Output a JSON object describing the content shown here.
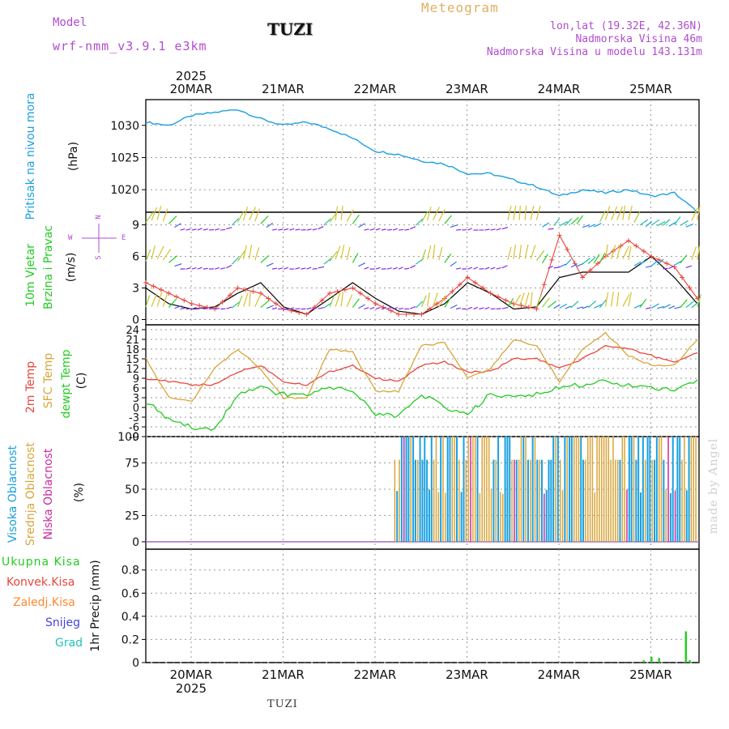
{
  "colors": {
    "pressure": "#1aa0e0",
    "temp2m": "#e8463c",
    "sfc_temp": "#d9a53a",
    "dewpt": "#22cc22",
    "model_color": "#b04ccf",
    "title_color": "#e0b060",
    "high_cloud": "#1aa0e0",
    "mid_cloud": "#d9a53a",
    "low_cloud": "#cc2aa0",
    "precip_total": "#22cc22",
    "precip_conv": "#e8463c",
    "precip_frz": "#ff8830",
    "precip_snow": "#4444dd",
    "precip_grad": "#22c0c0"
  },
  "header": {
    "model_label": "Model",
    "model_name": "wrf-nmm_v3.9.1  e3km",
    "station": "TUZI",
    "title": "Meteogram",
    "lonlat": "lon,lat (19.32E, 42.36N)",
    "elevation": "Nadmorska Visina 46m",
    "model_elevation": "Nadmorska Visina u modelu 143.131m"
  },
  "footer": {
    "station": "TUZI",
    "credit": "made by Angel"
  },
  "days": [
    "20MAR",
    "21MAR",
    "22MAR",
    "23MAR",
    "24MAR",
    "25MAR"
  ],
  "year": "2025",
  "panels": {
    "pressure": {
      "ylabel_line1": "Pritisak na nivou mora",
      "unit": "(hPa)"
    },
    "wind": {
      "ylabel_line1": "10m Vjetar",
      "ylabel_line2": "Brzina i Pravac",
      "unit": "(m/s)",
      "compass": {
        "n": "N",
        "w": "W",
        "e": "E",
        "s": "S"
      }
    },
    "temp": {
      "ylabel_line1": "2m Temp",
      "ylabel_line2": "SFC Temp",
      "ylabel_line3": "dewpt Temp",
      "unit": "(C)"
    },
    "cloud": {
      "ylabel_line1": "Visoka Oblacnost",
      "ylabel_line2": "Srednja Oblacnost",
      "ylabel_line3": "Niska Oblacnost",
      "unit": "(%)"
    },
    "precip": {
      "legend": [
        "Ukupna Kisa",
        "Konvek.Kisa",
        "Zaledj.Kisa",
        "Snijeg",
        "Grad"
      ],
      "ylabel": "1hr Precip (mm)"
    }
  },
  "chart_data": [
    {
      "type": "line",
      "title": "Pritisak na nivou mora",
      "ylabel": "(hPa)",
      "x_hours": [
        0,
        6,
        12,
        18,
        24,
        30,
        36,
        42,
        48,
        54,
        60,
        66,
        72,
        78,
        84,
        90,
        96,
        102,
        108,
        114,
        120,
        126,
        132,
        138,
        144
      ],
      "series": [
        {
          "name": "pressure",
          "values": [
            1030.5,
            1030,
            1031.5,
            1032,
            1032.5,
            1031,
            1030,
            1030.5,
            1029.5,
            1028,
            1026,
            1025.5,
            1024.5,
            1024,
            1022.5,
            1022.5,
            1021.5,
            1020.5,
            1019,
            1020,
            1019.5,
            1020,
            1019,
            1019.5,
            1016.5
          ]
        }
      ],
      "yticks": [
        1020,
        1025,
        1030
      ],
      "ylim": [
        1016.5,
        1034
      ]
    },
    {
      "type": "line",
      "title": "10m Vjetar Brzina i Pravac",
      "ylabel": "(m/s)",
      "x_hours": [
        0,
        6,
        12,
        18,
        24,
        30,
        36,
        42,
        48,
        54,
        60,
        66,
        72,
        78,
        84,
        90,
        96,
        102,
        108,
        114,
        120,
        126,
        132,
        138,
        144
      ],
      "series": [
        {
          "name": "wind speed",
          "values": [
            3,
            1.5,
            1,
            1.2,
            2.5,
            3.5,
            1.2,
            0.5,
            2,
            3.5,
            2,
            0.8,
            0.5,
            1.5,
            3.5,
            2.5,
            1,
            1.2,
            4,
            4.5,
            4.5,
            4.5,
            6,
            4,
            1.5
          ]
        },
        {
          "name": "gust",
          "values": [
            3.5,
            2.5,
            1.5,
            1,
            3,
            2.5,
            1,
            0.5,
            2.5,
            3,
            1.5,
            0.5,
            0.5,
            2,
            4,
            2.5,
            1.5,
            1,
            8,
            4,
            6,
            7.5,
            6,
            5,
            2
          ]
        }
      ],
      "yticks": [
        0,
        3,
        6,
        9
      ],
      "ylim": [
        -0.5,
        10.2
      ]
    },
    {
      "type": "line",
      "title": "2m Temp / SFC Temp / dewpt Temp",
      "ylabel": "(C)",
      "x_hours": [
        0,
        6,
        12,
        18,
        24,
        30,
        36,
        42,
        48,
        54,
        60,
        66,
        72,
        78,
        84,
        90,
        96,
        102,
        108,
        114,
        120,
        126,
        132,
        138,
        144
      ],
      "series": [
        {
          "name": "2m Temp",
          "values": [
            9,
            8,
            7,
            7,
            11,
            13,
            8,
            7,
            11,
            13,
            9,
            8,
            13,
            14,
            11,
            11,
            15,
            15,
            12,
            15,
            19,
            18,
            16,
            14,
            17
          ]
        },
        {
          "name": "SFC Temp",
          "values": [
            15,
            3,
            2,
            12,
            18,
            12,
            3,
            3,
            18,
            17,
            5,
            5,
            19,
            20,
            9,
            12,
            21,
            19,
            8,
            18,
            23,
            16,
            13,
            13,
            21
          ]
        },
        {
          "name": "dewpt Temp",
          "values": [
            2,
            -4,
            -6,
            -7,
            4,
            6,
            4,
            4,
            6,
            5,
            -2,
            -3,
            4,
            0,
            -2,
            4,
            3,
            4,
            6,
            7,
            8,
            7,
            6,
            5,
            8
          ]
        }
      ],
      "yticks": [
        -9,
        -6,
        -3,
        0,
        3,
        6,
        9,
        12,
        15,
        18,
        21,
        24
      ],
      "ylim": [
        -9,
        25.5
      ]
    },
    {
      "type": "bar",
      "title": "Oblacnost",
      "ylabel": "(%)",
      "yticks": [
        0,
        25,
        50,
        75,
        100
      ],
      "ylim": [
        -7,
        100
      ],
      "hour_ranges": [
        {
          "layer": "mixed",
          "from_hour": 65,
          "to_hour": 144
        }
      ]
    },
    {
      "type": "bar",
      "title": "1hr Precip (mm)",
      "ylabel": "1hr Precip (mm)",
      "x_hours": [
        130,
        132,
        134,
        141,
        142
      ],
      "values": [
        0.02,
        0.05,
        0.04,
        0.27,
        0.02
      ],
      "yticks": [
        0,
        0.2,
        0.4,
        0.6,
        0.8
      ],
      "ylim": [
        0,
        0.98
      ]
    }
  ]
}
